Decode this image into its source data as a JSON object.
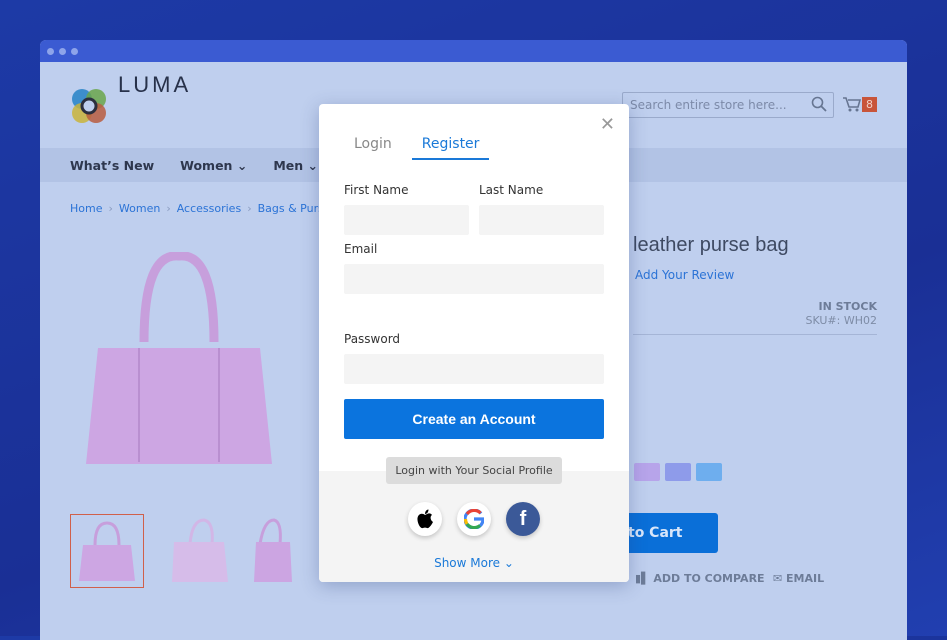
{
  "header": {
    "logo": "LUMA",
    "search_placeholder": "Search entire store here...",
    "cart_count": "8"
  },
  "nav": [
    "What’s New",
    "Women",
    "Men"
  ],
  "breadcrumbs": [
    "Home",
    "Women",
    "Accessories",
    "Bags & Purse"
  ],
  "product": {
    "title": "leather purse bag",
    "review_link": "Add Your Review",
    "stock": "IN STOCK",
    "sku": "SKU#: WH02",
    "swatches": [
      "#b7a4ea",
      "#8e9bea",
      "#6eaeee"
    ],
    "add_to_cart": "to Cart",
    "compare": "ADD TO COMPARE",
    "email": "EMAIL"
  },
  "modal": {
    "tabs": [
      {
        "label": "Login",
        "active": false
      },
      {
        "label": "Register",
        "active": true
      }
    ],
    "first_name_label": "First Name",
    "last_name_label": "Last Name",
    "email_label": "Email",
    "password_label": "Password",
    "create_button": "Create an Account",
    "social_label": "Login with Your Social Profile",
    "social": [
      "apple-icon",
      "google-icon",
      "facebook-icon"
    ],
    "show_more": "Show More"
  }
}
